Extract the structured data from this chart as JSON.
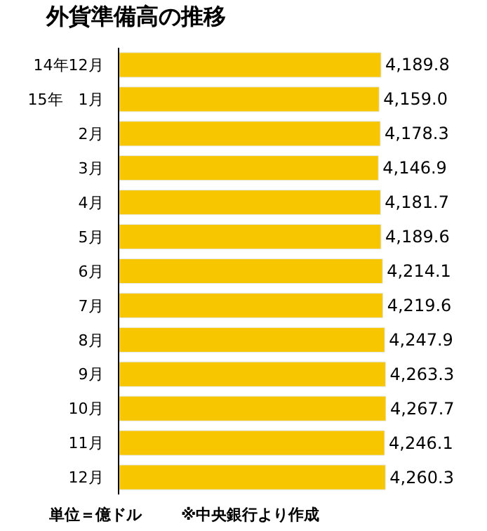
{
  "chart_data": {
    "type": "bar",
    "orientation": "horizontal",
    "title": "外貨準備高の推移",
    "categories": [
      "14年12月",
      "15年　1月",
      "2月",
      "3月",
      "4月",
      "5月",
      "6月",
      "7月",
      "8月",
      "9月",
      "10月",
      "11月",
      "12月"
    ],
    "values": [
      4189.8,
      4159.0,
      4178.3,
      4146.9,
      4181.7,
      4189.6,
      4214.1,
      4219.6,
      4247.9,
      4263.3,
      4267.7,
      4246.1,
      4260.3
    ],
    "value_labels": [
      "4,189.8",
      "4,159.0",
      "4,178.3",
      "4,146.9",
      "4,181.7",
      "4,189.6",
      "4,214.1",
      "4,219.6",
      "4,247.9",
      "4,263.3",
      "4,267.7",
      "4,246.1",
      "4,260.3"
    ],
    "color": "#f7c600",
    "annotations": [
      "単位＝億ドル",
      "※中央銀行より作成"
    ]
  }
}
